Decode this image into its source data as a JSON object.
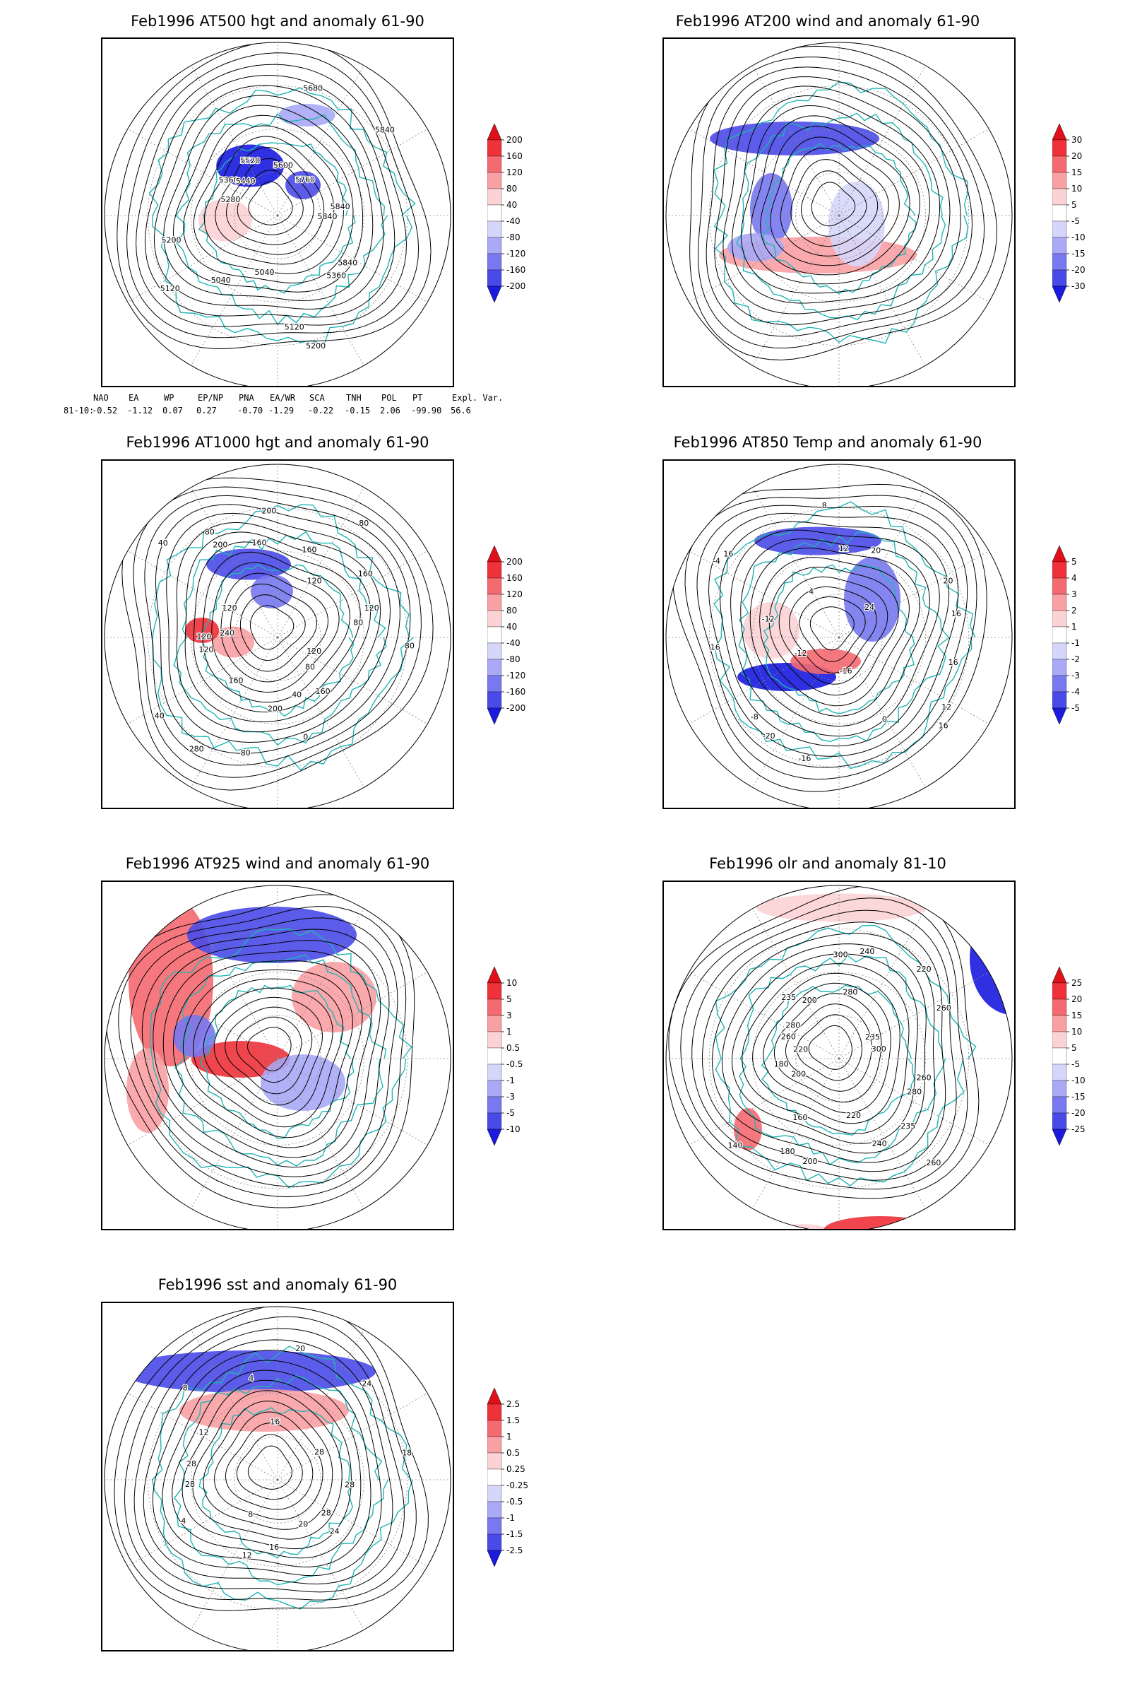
{
  "panels": [
    {
      "id": "p1",
      "title": "Feb1996 AT500 hgt and anomaly 61-90",
      "colorbar": [
        "200",
        "160",
        "120",
        "80",
        "40",
        "-40",
        "-80",
        "-120",
        "-160",
        "-200"
      ],
      "contour_labels": [
        "5840",
        "5840",
        "5360",
        "5200",
        "5120",
        "5040",
        "5040",
        "5120",
        "5200",
        "5280",
        "5360",
        "5440",
        "5520",
        "5600",
        "5680",
        "5760",
        "5840",
        "5840"
      ]
    },
    {
      "id": "p2",
      "title": "Feb1996 AT200 wind and anomaly 61-90",
      "colorbar": [
        "30",
        "20",
        "15",
        "10",
        "5",
        "-5",
        "-10",
        "-15",
        "-20",
        "-30"
      ],
      "contour_labels": []
    },
    {
      "id": "p3",
      "title": "Feb1996 AT1000 hgt and anomaly 61-90",
      "colorbar": [
        "200",
        "160",
        "120",
        "80",
        "40",
        "-40",
        "-80",
        "-120",
        "-160",
        "-200"
      ],
      "contour_labels": [
        "80",
        "120",
        "80",
        "160",
        "40",
        "0",
        "200",
        "80",
        "280",
        "160",
        "40",
        "120",
        "120",
        "240",
        "120",
        "40",
        "200",
        "80",
        "160",
        "200",
        "160",
        "120",
        "80",
        "160",
        "120",
        "80"
      ]
    },
    {
      "id": "p4",
      "title": "Feb1996 AT850 Temp and anomaly 61-90",
      "colorbar": [
        "5",
        "4",
        "3",
        "2",
        "1",
        "-1",
        "-2",
        "-3",
        "-4",
        "-5"
      ],
      "contour_labels": [
        "16",
        "12",
        "16",
        "0",
        "-16",
        "-16",
        "-20",
        "-8",
        "-12",
        "16",
        "-12",
        "-4",
        "16",
        "4",
        "8",
        "12",
        "20",
        "24",
        "20",
        "16"
      ]
    },
    {
      "id": "p5",
      "title": "Feb1996 AT925 wind and anomaly 61-90",
      "colorbar": [
        "10",
        "5",
        "3",
        "1",
        "0.5",
        "-0.5",
        "-1",
        "-3",
        "-5",
        "-10"
      ],
      "contour_labels": []
    },
    {
      "id": "p6",
      "title": "Feb1996 olr and anomaly 81-10",
      "colorbar": [
        "25",
        "20",
        "15",
        "10",
        "5",
        "-5",
        "-10",
        "-15",
        "-20",
        "-25"
      ],
      "contour_labels": [
        "260",
        "280",
        "235",
        "260",
        "240",
        "220",
        "200",
        "180",
        "160",
        "140",
        "200",
        "180",
        "220",
        "260",
        "280",
        "235",
        "200",
        "300",
        "280",
        "240",
        "220",
        "235",
        "260",
        "300"
      ]
    },
    {
      "id": "p7",
      "title": "Feb1996 sst and anomaly 61-90",
      "colorbar": [
        "2.5",
        "1.5",
        "1",
        "0.5",
        "0.25",
        "-0.25",
        "-0.5",
        "-1",
        "-1.5",
        "-2.5"
      ],
      "contour_labels": [
        "28",
        "28",
        "24",
        "20",
        "16",
        "12",
        "8",
        "4",
        "28",
        "28",
        "12",
        "8",
        "4",
        "16",
        "20",
        "24",
        "28",
        "18"
      ]
    }
  ],
  "index_table": {
    "header": [
      "NAO",
      "EA",
      "WP",
      "EP/NP",
      "PNA",
      "EA/WR",
      "SCA",
      "TNH",
      "POL",
      "PT",
      "Expl. Var."
    ],
    "row_label": "81-10:",
    "values": [
      "-0.52",
      "-1.12",
      "0.07",
      "0.27",
      "-0.70",
      "-1.29",
      "-0.22",
      "-0.15",
      "2.06",
      "-99.90",
      "56.6"
    ]
  },
  "colors": {
    "coast": "#1fb5b5",
    "contour": "#000000",
    "grid": "#888888",
    "pos": [
      "#e0101a",
      "#f0313a",
      "#f56970",
      "#f9a0a4",
      "#fcd3d5"
    ],
    "neg": [
      "#d6d6fb",
      "#a9a9f6",
      "#7878f0",
      "#4a4ae8",
      "#1a1ae0"
    ]
  }
}
